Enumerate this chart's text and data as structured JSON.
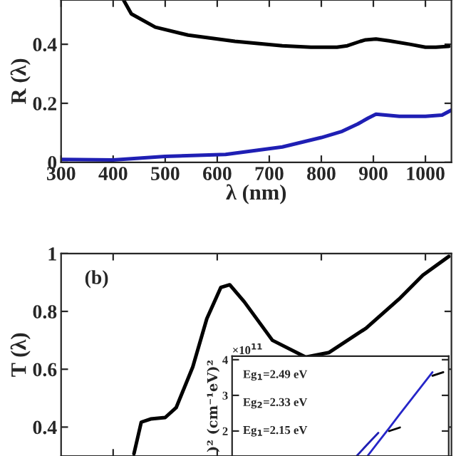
{
  "chart_data": [
    {
      "type": "line",
      "xlabel": "λ (nm)",
      "ylabel": "R (λ)",
      "xlim": [
        300,
        1050
      ],
      "ylim": [
        0,
        0.55
      ],
      "xticks": [
        300,
        400,
        500,
        600,
        700,
        800,
        900,
        1000
      ],
      "yticks": [
        0,
        0.2,
        0.4
      ],
      "grid": false,
      "legend": false,
      "series": [
        {
          "color": "#000000",
          "x": [
            420,
            435,
            481,
            544,
            634,
            725,
            780,
            830,
            850,
            875,
            885,
            905,
            930,
            970,
            1000,
            1020,
            1045
          ],
          "values": [
            0.55,
            0.503,
            0.458,
            0.431,
            0.41,
            0.395,
            0.39,
            0.39,
            0.395,
            0.41,
            0.415,
            0.418,
            0.412,
            0.4,
            0.39,
            0.39,
            0.393
          ]
        },
        {
          "color": "#1f1fb4",
          "x": [
            300,
            400,
            500,
            616,
            725,
            800,
            840,
            870,
            890,
            905,
            950,
            1000,
            1032,
            1050
          ],
          "values": [
            0.01,
            0.008,
            0.02,
            0.027,
            0.052,
            0.084,
            0.105,
            0.13,
            0.15,
            0.163,
            0.156,
            0.156,
            0.16,
            0.177
          ]
        }
      ]
    },
    {
      "type": "line",
      "ylabel": "T (λ)",
      "xlim": [
        300,
        1050
      ],
      "ylim": [
        0.3,
        1.0
      ],
      "yticks": [
        0.4,
        0.6,
        0.8,
        1
      ],
      "tick_labels": "y",
      "grid": false,
      "legend": false,
      "annotations": [
        "(b)"
      ],
      "series": [
        {
          "color": "#000000",
          "x": [
            440,
            454,
            472,
            500,
            521,
            553,
            580,
            607,
            624,
            652,
            706,
            770,
            815,
            886,
            949,
            995,
            1045
          ],
          "values": [
            0.308,
            0.417,
            0.428,
            0.433,
            0.467,
            0.608,
            0.775,
            0.883,
            0.892,
            0.833,
            0.7,
            0.642,
            0.658,
            0.742,
            0.842,
            0.925,
            0.99
          ]
        }
      ]
    },
    {
      "type": "line",
      "ylabel": ")² (cm⁻¹eV)²",
      "categories": [
        null,
        null,
        null,
        null,
        null,
        null,
        null,
        null,
        null,
        null,
        null,
        null,
        null,
        null,
        null,
        null,
        null,
        null,
        null,
        null
      ],
      "ylim": [
        1.3,
        4.1
      ],
      "yticks": [
        2,
        3,
        4
      ],
      "grid": false,
      "legend": false,
      "annotations": [
        "×10$^{11}$",
        "Eg$_{1}$=2.49 eV",
        "Eg$_{2}$=2.33 eV",
        "Eg$_{1}$=2.15 eV"
      ],
      "series": [
        {
          "color": "#1f1fb4",
          "values": [
            null,
            null,
            null,
            null,
            null,
            null,
            null,
            null,
            null,
            null,
            null,
            1.3,
            1.63,
            1.95,
            null,
            null,
            null,
            null,
            null,
            null
          ]
        },
        {
          "color": "#2626c8",
          "values": [
            null,
            null,
            null,
            null,
            null,
            null,
            null,
            null,
            null,
            null,
            null,
            null,
            1.3,
            1.69,
            2.08,
            2.48,
            2.87,
            3.26,
            3.65,
            null
          ]
        },
        {
          "color": "#000000",
          "values": [
            null,
            null,
            null,
            null,
            null,
            null,
            null,
            null,
            null,
            null,
            null,
            null,
            null,
            null,
            2.0,
            2.1,
            null,
            null,
            3.55,
            3.65
          ]
        }
      ]
    }
  ]
}
